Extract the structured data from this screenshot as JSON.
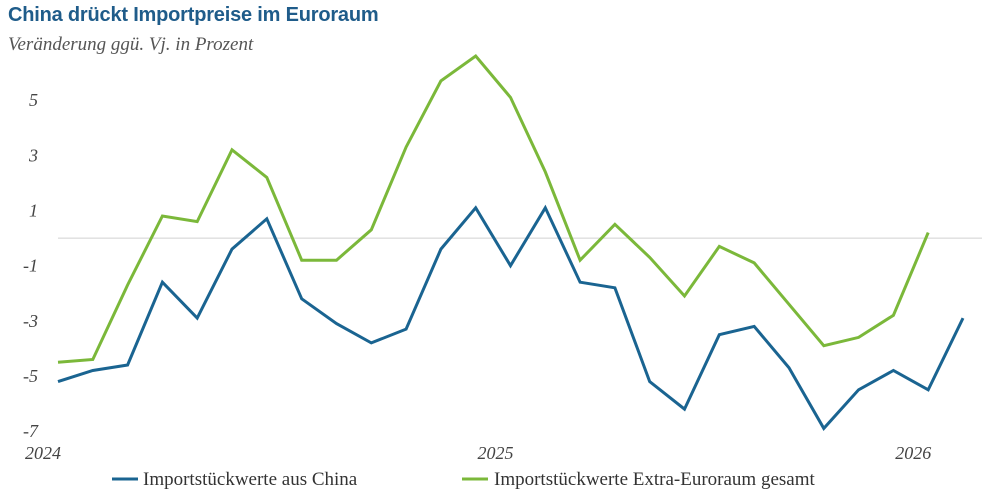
{
  "chart_data": {
    "type": "line",
    "title": "China drückt Importpreise im Euroraum",
    "subtitle": "Veränderung ggü. Vj. in Prozent",
    "xlabel": "",
    "ylabel": "",
    "ylim": [
      -7.5,
      7
    ],
    "y_ticks": [
      "5",
      "3",
      "1",
      "-1",
      "-3",
      "-5",
      "-7"
    ],
    "y_tick_values": [
      5,
      3,
      1,
      -1,
      -3,
      -5,
      -7
    ],
    "x_tick_labels": [
      "2024",
      "2025",
      "2026"
    ],
    "x_tick_index": [
      0,
      13,
      25
    ],
    "grid": false,
    "zero_line": true,
    "legend_position": "bottom",
    "colors": {
      "china": "#1a6491",
      "extra": "#7bb83a",
      "zero_line": "#d0d0d0"
    },
    "series": [
      {
        "name": "Importstückwerte aus China",
        "color": "#1a6491",
        "values": [
          -5.2,
          -4.8,
          -4.6,
          -1.6,
          -2.9,
          -0.4,
          0.7,
          -2.2,
          -3.1,
          -3.8,
          -3.3,
          -0.4,
          1.1,
          -1.0,
          1.1,
          -1.6,
          -1.8,
          -5.2,
          -6.2,
          -3.5,
          -3.2,
          -4.7,
          -6.9,
          -5.5,
          -4.8,
          -5.5,
          -2.9
        ]
      },
      {
        "name": "Importstückwerte Extra-Euroraum gesamt",
        "color": "#7bb83a",
        "values": [
          -4.5,
          -4.4,
          -1.7,
          0.8,
          0.6,
          3.2,
          2.2,
          -0.8,
          -0.8,
          0.3,
          3.3,
          5.7,
          6.6,
          5.1,
          2.4,
          -0.8,
          0.5,
          -0.7,
          -2.1,
          -0.3,
          -0.9,
          -2.4,
          -3.9,
          -3.6,
          -2.8,
          0.2,
          null
        ]
      }
    ]
  }
}
